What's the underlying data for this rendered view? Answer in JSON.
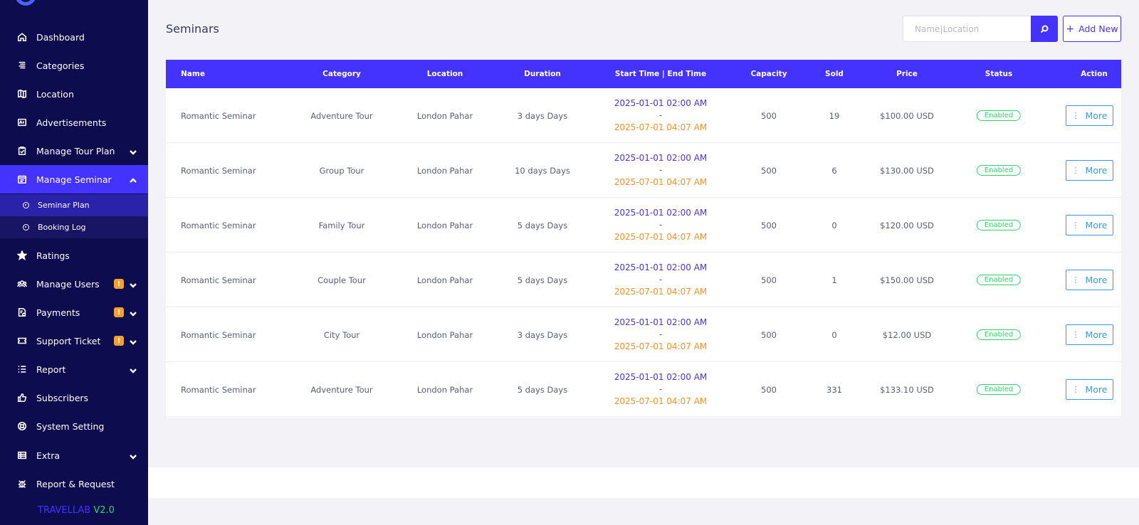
{
  "sidebar": {
    "items": [
      {
        "label": "Dashboard",
        "icon": "home-icon"
      },
      {
        "label": "Categories",
        "icon": "categories-icon"
      },
      {
        "label": "Location",
        "icon": "map-icon"
      },
      {
        "label": "Advertisements",
        "icon": "ad-icon"
      },
      {
        "label": "Manage Tour Plan",
        "icon": "clipboard-check-icon"
      },
      {
        "label": "Manage Seminar",
        "icon": "calendar-icon"
      },
      {
        "label": "Ratings",
        "icon": "star-icon"
      },
      {
        "label": "Manage Users",
        "icon": "users-icon",
        "badge": "!"
      },
      {
        "label": "Payments",
        "icon": "document-money-icon",
        "badge": "!"
      },
      {
        "label": "Support Ticket",
        "icon": "ticket-icon",
        "badge": "!"
      },
      {
        "label": "Report",
        "icon": "list-icon"
      },
      {
        "label": "Subscribers",
        "icon": "thumbs-up-icon"
      },
      {
        "label": "System Setting",
        "icon": "lifebuoy-icon"
      },
      {
        "label": "Extra",
        "icon": "table-icon"
      },
      {
        "label": "Report & Request",
        "icon": "bug-icon"
      }
    ],
    "sub_items": [
      {
        "label": "Seminar Plan"
      },
      {
        "label": "Booking Log"
      }
    ],
    "version_brand": "TRAVELLAB",
    "version_number": "V2.0"
  },
  "header": {
    "title": "Seminars",
    "search_placeholder": "Name|Location",
    "add_label": "Add New"
  },
  "table": {
    "columns": [
      "Name",
      "Category",
      "Location",
      "Duration",
      "Start Time | End Time",
      "Capacity",
      "Sold",
      "Price",
      "Status",
      "Action"
    ],
    "more_label": "More",
    "rows": [
      {
        "name": "Romantic Seminar",
        "category": "Adventure Tour",
        "location": "London Pahar",
        "duration": "3 days Days",
        "start": "2025-01-01 02:00 AM",
        "sep": "-",
        "end": "2025-07-01 04:07 AM",
        "capacity": "500",
        "sold": "19",
        "price": "$100.00 USD",
        "status": "Enabled"
      },
      {
        "name": "Romantic Seminar",
        "category": "Group Tour",
        "location": "London Pahar",
        "duration": "10 days Days",
        "start": "2025-01-01 02:00 AM",
        "sep": "-",
        "end": "2025-07-01 04:07 AM",
        "capacity": "500",
        "sold": "6",
        "price": "$130.00 USD",
        "status": "Enabled"
      },
      {
        "name": "Romantic Seminar",
        "category": "Family Tour",
        "location": "London Pahar",
        "duration": "5 days Days",
        "start": "2025-01-01 02:00 AM",
        "sep": "-",
        "end": "2025-07-01 04:07 AM",
        "capacity": "500",
        "sold": "0",
        "price": "$120.00 USD",
        "status": "Enabled"
      },
      {
        "name": "Romantic Seminar",
        "category": "Couple Tour",
        "location": "London Pahar",
        "duration": "5 days Days",
        "start": "2025-01-01 02:00 AM",
        "sep": "-",
        "end": "2025-07-01 04:07 AM",
        "capacity": "500",
        "sold": "1",
        "price": "$150.00 USD",
        "status": "Enabled"
      },
      {
        "name": "Romantic Seminar",
        "category": "City Tour",
        "location": "London Pahar",
        "duration": "3 days Days",
        "start": "2025-01-01 02:00 AM",
        "sep": "-",
        "end": "2025-07-01 04:07 AM",
        "capacity": "500",
        "sold": "0",
        "price": "$12.00 USD",
        "status": "Enabled"
      },
      {
        "name": "Romantic Seminar",
        "category": "Adventure Tour",
        "location": "London Pahar",
        "duration": "5 days Days",
        "start": "2025-01-01 02:00 AM",
        "sep": "-",
        "end": "2025-07-01 04:07 AM",
        "capacity": "500",
        "sold": "331",
        "price": "$133.10 USD",
        "status": "Enabled"
      }
    ]
  },
  "colors": {
    "sidebar_bg": "#0d0c4f",
    "accent": "#4433ff",
    "status_green": "#2fd36d",
    "end_time_orange": "#ff8f1f",
    "more_blue": "#3699f5",
    "badge_orange": "#ff9f29"
  }
}
